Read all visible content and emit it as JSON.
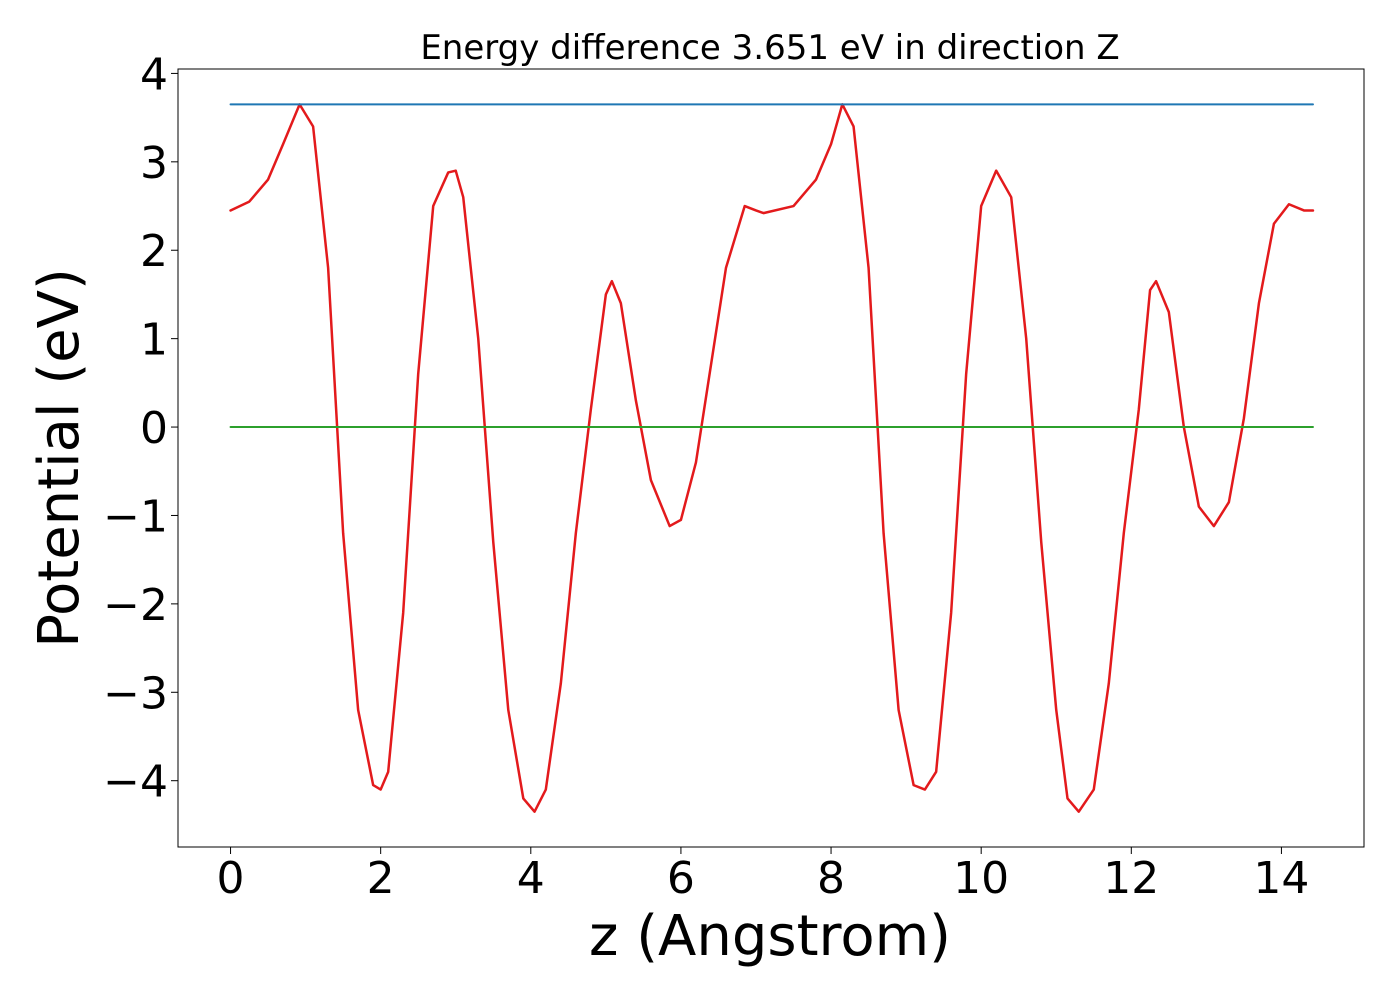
{
  "chart_data": {
    "type": "line",
    "title": "Energy difference 3.651 eV in direction Z",
    "xlabel": "z (Angstrom)",
    "ylabel": "Potential (eV)",
    "xlim": [
      -0.7,
      15.1
    ],
    "ylim": [
      -4.75,
      4.05
    ],
    "x_ticks": [
      0,
      2,
      4,
      6,
      8,
      10,
      12,
      14
    ],
    "y_ticks": [
      -4,
      -3,
      -2,
      -1,
      0,
      1,
      2,
      3,
      4
    ],
    "x_tick_labels": [
      "0",
      "2",
      "4",
      "6",
      "8",
      "10",
      "12",
      "14"
    ],
    "y_tick_labels": [
      "−4",
      "−3",
      "−2",
      "−1",
      "0",
      "1",
      "2",
      "3",
      "4"
    ],
    "grid": false,
    "colors": {
      "potential": "#e31a1c",
      "upper_line": "#1f77b4",
      "zero_line": "#2ca02c",
      "axes": "#000000"
    },
    "series": [
      {
        "key": "potential",
        "x": [
          0.0,
          0.25,
          0.5,
          0.7,
          0.92,
          1.1,
          1.3,
          1.5,
          1.7,
          1.9,
          2.0,
          2.1,
          2.3,
          2.5,
          2.7,
          2.9,
          3.0,
          3.1,
          3.3,
          3.5,
          3.7,
          3.9,
          4.05,
          4.2,
          4.4,
          4.6,
          4.8,
          5.0,
          5.08,
          5.2,
          5.4,
          5.6,
          5.85,
          6.0,
          6.2,
          6.4,
          6.6,
          6.85,
          7.0,
          7.1,
          7.5,
          7.8,
          8.0,
          8.15,
          8.3,
          8.5,
          8.7,
          8.9,
          9.1,
          9.25,
          9.4,
          9.6,
          9.8,
          10.0,
          10.2,
          10.4,
          10.6,
          10.8,
          11.0,
          11.15,
          11.3,
          11.5,
          11.7,
          11.9,
          12.1,
          12.25,
          12.33,
          12.5,
          12.7,
          12.9,
          13.1,
          13.3,
          13.5,
          13.7,
          13.9,
          14.1,
          14.3,
          14.42
        ],
        "y": [
          2.45,
          2.55,
          2.8,
          3.2,
          3.65,
          3.4,
          1.8,
          -1.2,
          -3.2,
          -4.05,
          -4.1,
          -3.9,
          -2.1,
          0.6,
          2.5,
          2.88,
          2.9,
          2.6,
          1.0,
          -1.3,
          -3.2,
          -4.2,
          -4.35,
          -4.1,
          -2.9,
          -1.2,
          0.2,
          1.5,
          1.65,
          1.4,
          0.3,
          -0.6,
          -1.12,
          -1.05,
          -0.4,
          0.7,
          1.8,
          2.5,
          2.45,
          2.42,
          2.5,
          2.8,
          3.2,
          3.65,
          3.4,
          1.8,
          -1.2,
          -3.2,
          -4.05,
          -4.1,
          -3.9,
          -2.1,
          0.6,
          2.5,
          2.9,
          2.6,
          1.0,
          -1.3,
          -3.2,
          -4.2,
          -4.35,
          -4.1,
          -2.9,
          -1.2,
          0.2,
          1.55,
          1.65,
          1.3,
          0.0,
          -0.9,
          -1.12,
          -0.85,
          0.1,
          1.4,
          2.3,
          2.52,
          2.45,
          2.45
        ]
      },
      {
        "key": "upper_line",
        "x": [
          0.0,
          14.42
        ],
        "y": [
          3.65,
          3.65
        ]
      },
      {
        "key": "zero_line",
        "x": [
          0.0,
          14.42
        ],
        "y": [
          0.0,
          0.0
        ]
      }
    ]
  }
}
